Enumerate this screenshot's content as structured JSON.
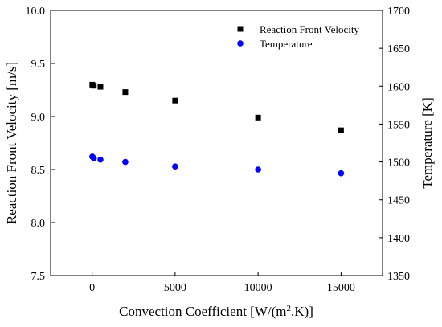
{
  "chart_data": {
    "type": "scatter",
    "xlabel_prefix": "Convection Coefficient [W/(m",
    "xlabel_sup": "2",
    "xlabel_suffix": ".K)]",
    "ylabel_left": "Reaction Front Velocity [m/s]",
    "ylabel_right": "Temperature [K]",
    "xlim": [
      -2500,
      17500
    ],
    "ylim_left": [
      7.5,
      10.0
    ],
    "ylim_right": [
      1350,
      1700
    ],
    "x_ticks": [
      0,
      5000,
      10000,
      15000
    ],
    "y_ticks_left": [
      "7.5",
      "8.0",
      "8.5",
      "9.0",
      "9.5",
      "10.0"
    ],
    "y_ticks_right": [
      "1350",
      "1400",
      "1450",
      "1500",
      "1550",
      "1600",
      "1650",
      "1700"
    ],
    "legend_position": "top-right",
    "series": [
      {
        "name": "Reaction Front Velocity",
        "axis": "left",
        "marker": "square",
        "color": "#000000",
        "points": [
          {
            "x": 10,
            "y": 9.3
          },
          {
            "x": 100,
            "y": 9.29
          },
          {
            "x": 500,
            "y": 9.28
          },
          {
            "x": 2000,
            "y": 9.23
          },
          {
            "x": 5000,
            "y": 9.15
          },
          {
            "x": 10000,
            "y": 8.99
          },
          {
            "x": 15000,
            "y": 8.87
          }
        ]
      },
      {
        "name": "Temperature",
        "axis": "right",
        "marker": "circle",
        "color": "#0000ff",
        "points": [
          {
            "x": 10,
            "y": 1507
          },
          {
            "x": 100,
            "y": 1505
          },
          {
            "x": 500,
            "y": 1503
          },
          {
            "x": 2000,
            "y": 1500
          },
          {
            "x": 5000,
            "y": 1494
          },
          {
            "x": 10000,
            "y": 1490
          },
          {
            "x": 15000,
            "y": 1485
          }
        ]
      }
    ]
  }
}
